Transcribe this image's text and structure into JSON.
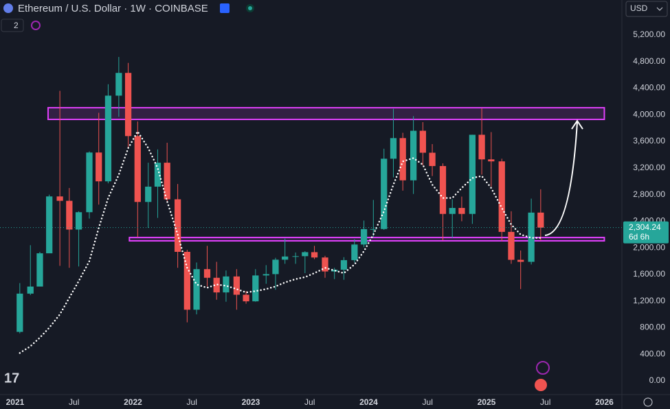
{
  "chart_data": {
    "type": "candlestick",
    "title": "Ethereum / U.S. Dollar · 1W · COINBASE",
    "indicator_count": "2",
    "currency": "USD",
    "up_color": "#26a69a",
    "down_color": "#ef5350",
    "ma_color": "#ffffff",
    "zone_color": "#e040fb",
    "x": [
      2021.04,
      2021.13,
      2021.21,
      2021.29,
      2021.38,
      2021.46,
      2021.54,
      2021.63,
      2021.71,
      2021.79,
      2021.88,
      2021.96,
      2022.04,
      2022.13,
      2022.21,
      2022.29,
      2022.38,
      2022.46,
      2022.54,
      2022.63,
      2022.71,
      2022.79,
      2022.88,
      2022.96,
      2023.04,
      2023.13,
      2023.21,
      2023.29,
      2023.38,
      2023.46,
      2023.54,
      2023.63,
      2023.71,
      2023.79,
      2023.88,
      2023.96,
      2024.04,
      2024.13,
      2024.21,
      2024.29,
      2024.38,
      2024.46,
      2024.54,
      2024.63,
      2024.71,
      2024.79,
      2024.88,
      2024.96,
      2025.04,
      2025.13,
      2025.21,
      2025.29,
      2025.38,
      2025.46
    ],
    "candles": [
      [
        737,
        1470,
        715,
        1312
      ],
      [
        1312,
        2040,
        1290,
        1418
      ],
      [
        1418,
        1940,
        1440,
        1918
      ],
      [
        1918,
        2800,
        1930,
        2773
      ],
      [
        2773,
        4360,
        1730,
        2707
      ],
      [
        2707,
        2900,
        1700,
        2275
      ],
      [
        2275,
        2550,
        1720,
        2536
      ],
      [
        2536,
        3450,
        2440,
        3433
      ],
      [
        3433,
        4030,
        2650,
        3000
      ],
      [
        3000,
        4460,
        2970,
        4288
      ],
      [
        4288,
        4870,
        3970,
        4630
      ],
      [
        4630,
        4780,
        3500,
        3680
      ],
      [
        3680,
        3900,
        2160,
        2690
      ],
      [
        2690,
        3280,
        2300,
        2920
      ],
      [
        2920,
        3480,
        2450,
        3280
      ],
      [
        3280,
        3580,
        2700,
        2730
      ],
      [
        2730,
        2960,
        1700,
        1940
      ],
      [
        1940,
        1970,
        880,
        1070
      ],
      [
        1070,
        1780,
        1000,
        1680
      ],
      [
        1680,
        2030,
        1420,
        1550
      ],
      [
        1550,
        1790,
        1220,
        1330
      ],
      [
        1330,
        1660,
        1190,
        1570
      ],
      [
        1570,
        1680,
        1070,
        1295
      ],
      [
        1295,
        1350,
        1160,
        1196
      ],
      [
        1196,
        1680,
        1190,
        1585
      ],
      [
        1585,
        1740,
        1460,
        1605
      ],
      [
        1605,
        1850,
        1370,
        1822
      ],
      [
        1822,
        2140,
        1760,
        1870
      ],
      [
        1870,
        1930,
        1760,
        1875
      ],
      [
        1875,
        1950,
        1620,
        1935
      ],
      [
        1935,
        2030,
        1830,
        1855
      ],
      [
        1855,
        1880,
        1550,
        1645
      ],
      [
        1645,
        1700,
        1530,
        1671
      ],
      [
        1671,
        1860,
        1520,
        1815
      ],
      [
        1815,
        2130,
        1780,
        2050
      ],
      [
        2050,
        2410,
        2010,
        2282
      ],
      [
        2282,
        2720,
        2170,
        2283
      ],
      [
        2283,
        3490,
        2270,
        3340
      ],
      [
        3340,
        4090,
        3060,
        3650
      ],
      [
        3650,
        3730,
        2860,
        3015
      ],
      [
        3015,
        3980,
        2810,
        3760
      ],
      [
        3760,
        3890,
        3240,
        3430
      ],
      [
        3430,
        3560,
        3080,
        3230
      ],
      [
        3230,
        3270,
        2110,
        2510
      ],
      [
        2510,
        2730,
        2150,
        2600
      ],
      [
        2600,
        2770,
        2400,
        2510
      ],
      [
        2510,
        3700,
        2360,
        3700
      ],
      [
        3700,
        4100,
        3100,
        3330
      ],
      [
        3330,
        3740,
        2920,
        3300
      ],
      [
        3300,
        3340,
        2100,
        2240
      ],
      [
        2240,
        2550,
        1760,
        1820
      ],
      [
        1820,
        1960,
        1380,
        1790
      ],
      [
        1790,
        2740,
        1750,
        2530
      ],
      [
        2530,
        2880,
        2110,
        2304.24
      ]
    ],
    "ma": [
      420,
      520,
      650,
      800,
      1000,
      1250,
      1500,
      1800,
      2300,
      2750,
      3100,
      3500,
      3750,
      3500,
      3200,
      2700,
      2200,
      1700,
      1450,
      1400,
      1450,
      1430,
      1380,
      1330,
      1350,
      1380,
      1420,
      1480,
      1530,
      1560,
      1620,
      1700,
      1660,
      1620,
      1750,
      1950,
      2200,
      2550,
      2950,
      3300,
      3350,
      3250,
      2950,
      2750,
      2750,
      2900,
      3050,
      3080,
      2900,
      2600,
      2350,
      2200,
      2150,
      2150
    ],
    "zones": [
      {
        "xlim": [
          2021.28,
          2026.0
        ],
        "ylim": [
          3931,
          4107
        ]
      },
      {
        "xlim": [
          2021.97,
          2026.0
        ],
        "ylim": [
          2105,
          2156
        ]
      }
    ],
    "last_price": {
      "value": 2304.24,
      "label": "2,304.24"
    },
    "countdown": "6d 6h",
    "xlim": [
      2020.872,
      2026.149
    ],
    "ylim": [
      -206,
      5726
    ],
    "xticks": [
      2021,
      {
        "value": 2021.5,
        "label": "Jul"
      },
      2022,
      {
        "value": 2022.5,
        "label": "Jul"
      },
      2023,
      {
        "value": 2023.5,
        "label": "Jul"
      },
      2024,
      {
        "value": 2024.5,
        "label": "Jul"
      },
      2025,
      {
        "value": 2025.5,
        "label": "Jul"
      },
      2026
    ],
    "yticks": [
      {
        "value": 0,
        "label": "0.00"
      },
      {
        "value": 400,
        "label": "400.00"
      },
      {
        "value": 800,
        "label": "800.00"
      },
      {
        "value": 1200,
        "label": "1,200.00"
      },
      {
        "value": 1600,
        "label": "1,600.00"
      },
      {
        "value": 2000,
        "label": "2,000.00"
      },
      {
        "value": 2400,
        "label": "2,400.00"
      },
      {
        "value": 2800,
        "label": "2,800.00"
      },
      {
        "value": 3200,
        "label": "3,200.00"
      },
      {
        "value": 3600,
        "label": "3,600.00"
      },
      {
        "value": 4000,
        "label": "4,000.00"
      },
      {
        "value": 4400,
        "label": "4,400.00"
      },
      {
        "value": 4800,
        "label": "4,800.00"
      },
      {
        "value": 5200,
        "label": "5,200.00"
      }
    ]
  }
}
